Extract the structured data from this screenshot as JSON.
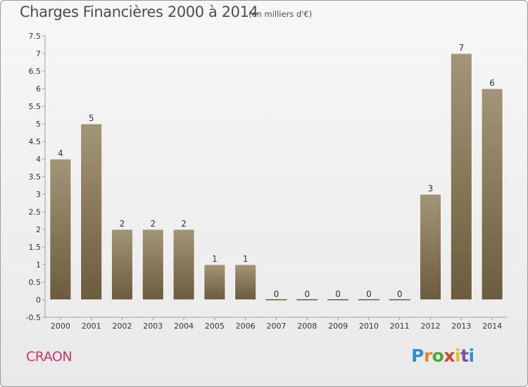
{
  "header": {
    "title": "Charges Financières 2000 à 2014",
    "subtitle": "(en milliers d'€)"
  },
  "footer": {
    "commune": "CRAON",
    "logo_letters": [
      "P",
      "r",
      "o",
      "x",
      "i",
      "t",
      "i"
    ]
  },
  "colors": {
    "bar_top": "#a39577",
    "bar_bottom": "#6c5c3e",
    "axis": "#9e9e9e",
    "commune_text": "#c8356b"
  },
  "chart_data": {
    "type": "bar",
    "title": "Charges Financières 2000 à 2014",
    "subtitle": "(en milliers d'€)",
    "categories": [
      "2000",
      "2001",
      "2002",
      "2003",
      "2004",
      "2005",
      "2006",
      "2007",
      "2008",
      "2009",
      "2010",
      "2011",
      "2012",
      "2013",
      "2014"
    ],
    "values": [
      4,
      5,
      2,
      2,
      2,
      1,
      1,
      0,
      0,
      0,
      0,
      0,
      3,
      7,
      6
    ],
    "y_ticks": [
      -0.5,
      0,
      0.5,
      1,
      1.5,
      2,
      2.5,
      3,
      3.5,
      4,
      4.5,
      5,
      5.5,
      6,
      6.5,
      7,
      7.5
    ],
    "y_tick_labels": [
      "-0.5",
      "0",
      "0.5",
      "1",
      "1.5",
      "2",
      "2.5",
      "3",
      "3.5",
      "4",
      "4.5",
      "5",
      "5.5",
      "6",
      "6.5",
      "7",
      "7.5"
    ],
    "ylim": [
      -0.5,
      7.5
    ],
    "xlabel": "",
    "ylabel": "",
    "grid": false,
    "legend": "none"
  }
}
